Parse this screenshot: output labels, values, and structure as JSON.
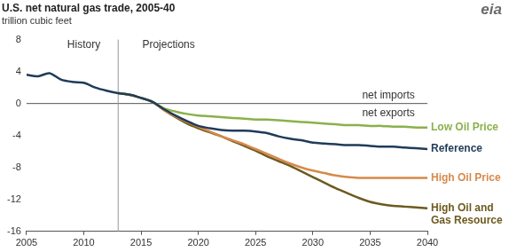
{
  "chart_data": {
    "type": "line",
    "title": "U.S. net natural gas trade, 2005-40",
    "subtitle": "trillion cubic feet",
    "logo": "eia",
    "x": [
      2005,
      2006,
      2007,
      2008,
      2009,
      2010,
      2011,
      2012,
      2013,
      2014,
      2015,
      2016,
      2017,
      2018,
      2019,
      2020,
      2021,
      2022,
      2023,
      2024,
      2025,
      2026,
      2027,
      2028,
      2029,
      2030,
      2031,
      2032,
      2033,
      2034,
      2035,
      2036,
      2037,
      2038,
      2039,
      2040
    ],
    "xlim": [
      2005,
      2040
    ],
    "xticks": [
      2005,
      2010,
      2015,
      2020,
      2025,
      2030,
      2035,
      2040
    ],
    "ylim": [
      -16,
      8
    ],
    "yticks": [
      -16,
      -12,
      -8,
      -4,
      0,
      4,
      8
    ],
    "grid": false,
    "vline": 2013,
    "annotations": [
      {
        "text": "History",
        "x": 2010,
        "y": 7.3
      },
      {
        "text": "Projections",
        "x": 2017.4,
        "y": 7.3
      },
      {
        "text": "net imports",
        "x": 2036.6,
        "y": 1.0
      },
      {
        "text": "net exports",
        "x": 2036.6,
        "y": -1.2
      }
    ],
    "series": [
      {
        "name": "Reference",
        "color": "#1f3b5a",
        "values": [
          3.6,
          3.4,
          3.8,
          3.0,
          2.7,
          2.6,
          2.0,
          1.6,
          1.3,
          1.1,
          0.7,
          0.2,
          -0.7,
          -1.5,
          -2.2,
          -2.8,
          -3.1,
          -3.3,
          -3.4,
          -3.4,
          -3.5,
          -3.7,
          -4.1,
          -4.4,
          -4.6,
          -4.9,
          -5.0,
          -5.1,
          -5.2,
          -5.2,
          -5.3,
          -5.4,
          -5.4,
          -5.5,
          -5.6,
          -5.7
        ]
      },
      {
        "name": "Low Oil Price",
        "color": "#8ab14a",
        "values": [
          null,
          null,
          null,
          null,
          null,
          null,
          null,
          null,
          1.3,
          1.1,
          0.7,
          0.2,
          -0.6,
          -1.0,
          -1.3,
          -1.5,
          -1.6,
          -1.7,
          -1.8,
          -1.9,
          -2.0,
          -2.0,
          -2.1,
          -2.2,
          -2.3,
          -2.4,
          -2.5,
          -2.6,
          -2.7,
          -2.7,
          -2.8,
          -2.8,
          -2.9,
          -2.9,
          -3.0,
          -3.0
        ]
      },
      {
        "name": "High Oil Price",
        "color": "#d68a4a",
        "values": [
          null,
          null,
          null,
          null,
          null,
          null,
          null,
          null,
          1.3,
          1.1,
          0.7,
          0.2,
          -0.8,
          -1.6,
          -2.3,
          -2.9,
          -3.5,
          -4.1,
          -4.6,
          -5.1,
          -5.7,
          -6.3,
          -6.9,
          -7.5,
          -8.0,
          -8.4,
          -8.7,
          -9.0,
          -9.2,
          -9.3,
          -9.3,
          -9.3,
          -9.3,
          -9.3,
          -9.3,
          -9.3
        ]
      },
      {
        "name": "High Oil and Gas Resource",
        "color": "#6d5a1f",
        "values": [
          null,
          null,
          null,
          null,
          null,
          null,
          null,
          null,
          1.3,
          1.1,
          0.7,
          0.2,
          -0.8,
          -1.7,
          -2.5,
          -3.1,
          -3.6,
          -4.1,
          -4.7,
          -5.3,
          -5.9,
          -6.6,
          -7.2,
          -7.8,
          -8.5,
          -9.2,
          -9.9,
          -10.6,
          -11.2,
          -11.8,
          -12.3,
          -12.6,
          -12.8,
          -12.9,
          -13.0,
          -13.1
        ]
      }
    ]
  }
}
